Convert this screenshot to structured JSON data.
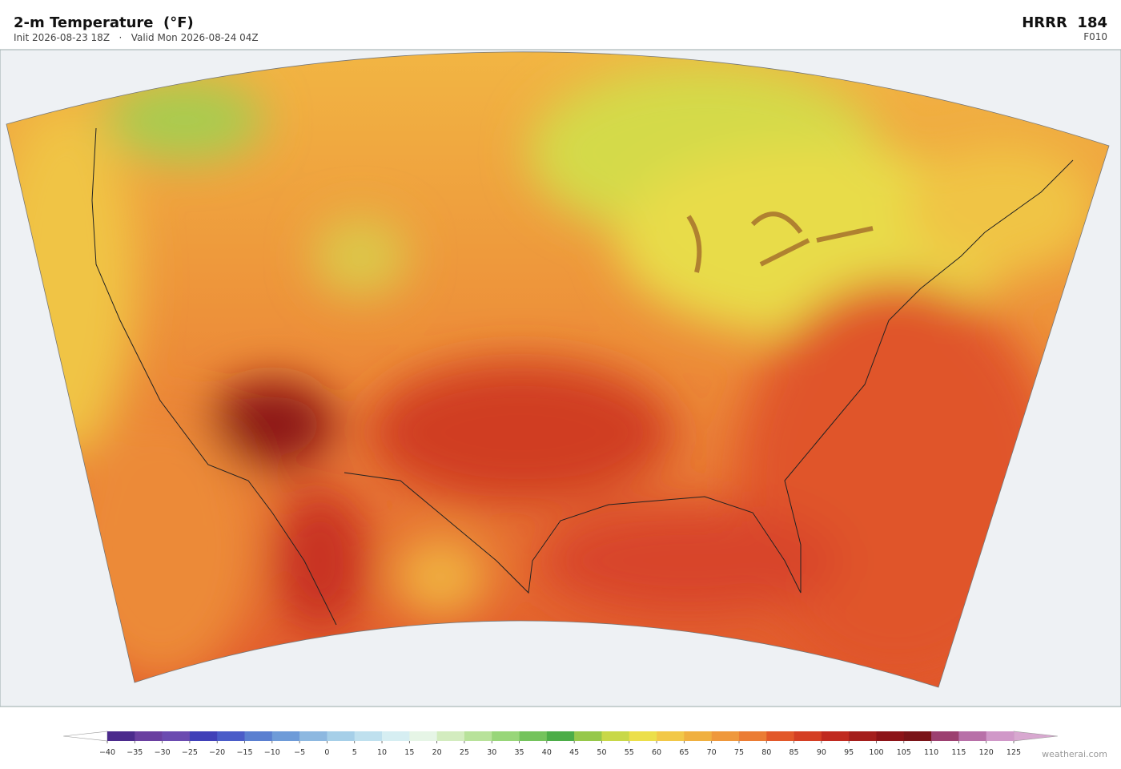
{
  "header": {
    "title": "2-m Temperature  (°F)",
    "subtitle": "Init 2026-08-23 18Z   ·   Valid Mon 2026-08-24 04Z",
    "model": "HRRR  184",
    "forecast_hour": "F010"
  },
  "colorbar": {
    "ticks": [
      {
        "value": -40,
        "label": "−40"
      },
      {
        "value": -35,
        "label": "−35"
      },
      {
        "value": -30,
        "label": "−30"
      },
      {
        "value": -25,
        "label": "−25"
      },
      {
        "value": -20,
        "label": "−20"
      },
      {
        "value": -15,
        "label": "−15"
      },
      {
        "value": -10,
        "label": "−10"
      },
      {
        "value": -5,
        "label": "−5"
      },
      0,
      5,
      10,
      15,
      20,
      25,
      30,
      35,
      40,
      45,
      50,
      55,
      60,
      65,
      70,
      75,
      80,
      85,
      90,
      95,
      100,
      105,
      110,
      115,
      120,
      125
    ],
    "colors": [
      "#4b2a8c",
      "#6a3fa0",
      "#6b4bb0",
      "#4040b8",
      "#4a5cc8",
      "#5a7fd0",
      "#6e9bd8",
      "#8db8e0",
      "#a6cfe8",
      "#bfe0ee",
      "#d6eef2",
      "#e6f5e6",
      "#d3ecbf",
      "#b8e29a",
      "#98d679",
      "#74c35c",
      "#4cad48",
      "#96c84a",
      "#c8d848",
      "#ecdf4a",
      "#f2c848",
      "#f0b040",
      "#ef983c",
      "#eb7c34",
      "#e2582a",
      "#d43f24",
      "#c02a20",
      "#a41e1c",
      "#8c1418",
      "#7a1418",
      "#9c4070",
      "#b870a8",
      "#d098c8"
    ],
    "under_color": "#ffffff",
    "over_color": "#d8a8d0"
  },
  "credit": "weatherai.com"
}
